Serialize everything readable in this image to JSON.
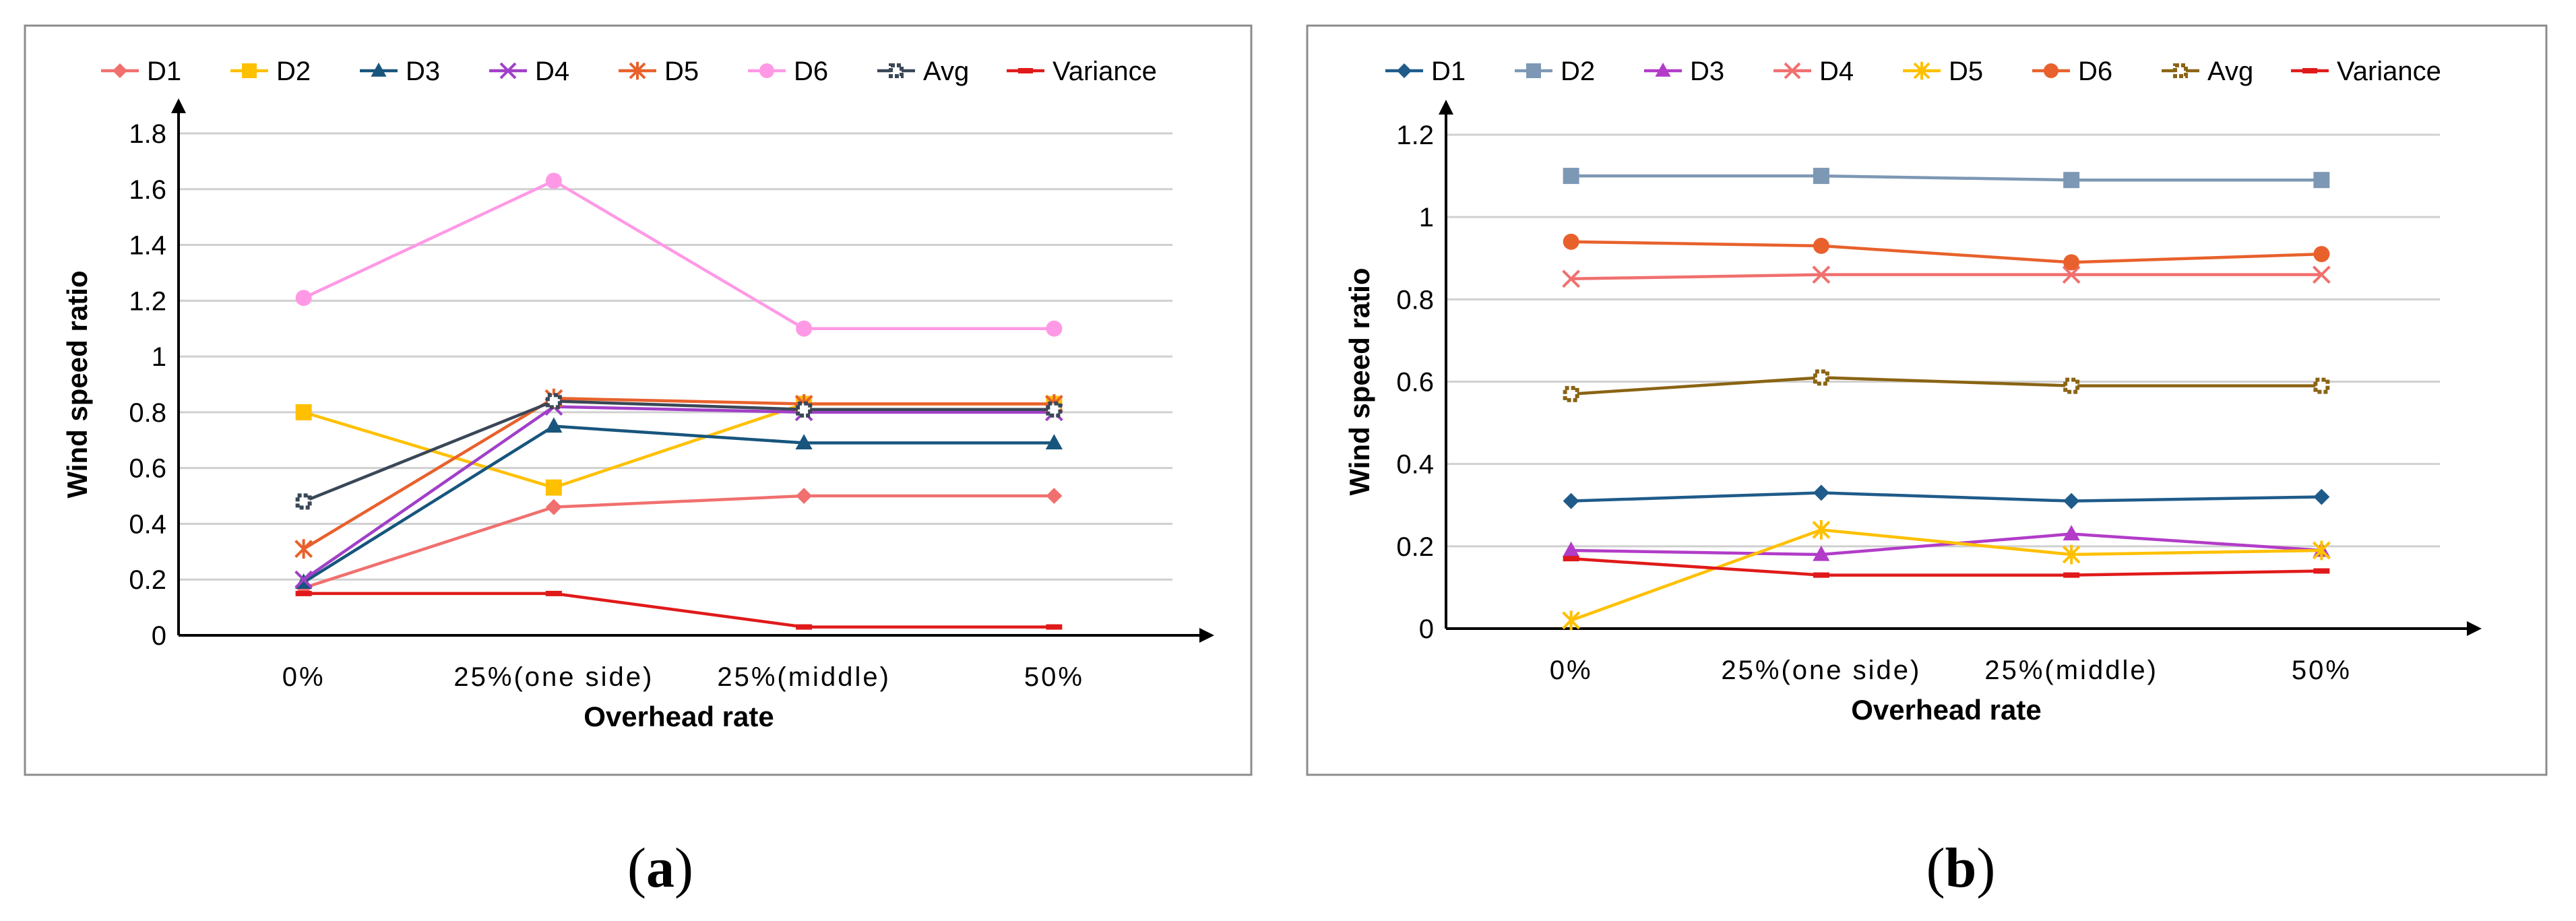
{
  "chart_data": [
    {
      "type": "line",
      "panel": "a",
      "caption": "a",
      "categories": [
        "0%",
        "25%(one side)",
        "25%(middle)",
        "50%"
      ],
      "xlabel": "Overhead rate",
      "ylabel": "Wind speed ratio",
      "ylim": [
        0,
        1.8
      ],
      "yticks": [
        0,
        0.2,
        0.4,
        0.6,
        0.8,
        1,
        1.2,
        1.4,
        1.6,
        1.8
      ],
      "ytick_labels": [
        "0",
        "0.2",
        "0.4",
        "0.6",
        "0.8",
        "1",
        "1.2",
        "1.4",
        "1.6",
        "1.8"
      ],
      "grid": true,
      "legend": "top",
      "series": [
        {
          "name": "D1",
          "color": "#f0706f",
          "marker": "diamond",
          "values": [
            0.17,
            0.46,
            0.5,
            0.5
          ]
        },
        {
          "name": "D2",
          "color": "#ffc000",
          "marker": "square",
          "values": [
            0.8,
            0.53,
            0.83,
            0.83
          ]
        },
        {
          "name": "D3",
          "color": "#17557d",
          "marker": "triangle",
          "values": [
            0.19,
            0.75,
            0.69,
            0.69
          ]
        },
        {
          "name": "D4",
          "color": "#a140c8",
          "marker": "x",
          "values": [
            0.2,
            0.82,
            0.8,
            0.8
          ]
        },
        {
          "name": "D5",
          "color": "#e8612c",
          "marker": "star",
          "values": [
            0.31,
            0.85,
            0.83,
            0.83
          ]
        },
        {
          "name": "D6",
          "color": "#ff99e6",
          "marker": "circle",
          "values": [
            1.21,
            1.63,
            1.1,
            1.1
          ]
        },
        {
          "name": "Avg",
          "color": "#3a4757",
          "marker": "hsquare",
          "values": [
            0.48,
            0.84,
            0.81,
            0.81
          ]
        },
        {
          "name": "Variance",
          "color": "#e01a1a",
          "marker": "dash",
          "values": [
            0.15,
            0.15,
            0.03,
            0.03
          ]
        }
      ]
    },
    {
      "type": "line",
      "panel": "b",
      "caption": "b",
      "categories": [
        "0%",
        "25%(one side)",
        "25%(middle)",
        "50%"
      ],
      "xlabel": "Overhead rate",
      "ylabel": "Wind speed ratio",
      "ylim": [
        0,
        1.2
      ],
      "yticks": [
        0,
        0.2,
        0.4,
        0.6,
        0.8,
        1,
        1.2
      ],
      "ytick_labels": [
        "0",
        "0.2",
        "0.4",
        "0.6",
        "0.8",
        "1",
        "1.2"
      ],
      "grid": true,
      "legend": "top",
      "series": [
        {
          "name": "D1",
          "color": "#1f5b8a",
          "marker": "diamond",
          "values": [
            0.31,
            0.33,
            0.31,
            0.32
          ]
        },
        {
          "name": "D2",
          "color": "#7d98b4",
          "marker": "square",
          "values": [
            1.1,
            1.1,
            1.09,
            1.09
          ]
        },
        {
          "name": "D3",
          "color": "#b23cc8",
          "marker": "triangle",
          "values": [
            0.19,
            0.18,
            0.23,
            0.19
          ]
        },
        {
          "name": "D4",
          "color": "#f0706f",
          "marker": "x",
          "values": [
            0.85,
            0.86,
            0.86,
            0.86
          ]
        },
        {
          "name": "D5",
          "color": "#ffc000",
          "marker": "star",
          "values": [
            0.02,
            0.24,
            0.18,
            0.19
          ]
        },
        {
          "name": "D6",
          "color": "#e8612c",
          "marker": "circle",
          "values": [
            0.94,
            0.93,
            0.89,
            0.91
          ]
        },
        {
          "name": "Avg",
          "color": "#8a6414",
          "marker": "hsquare",
          "values": [
            0.57,
            0.61,
            0.59,
            0.59
          ]
        },
        {
          "name": "Variance",
          "color": "#e01a1a",
          "marker": "dash",
          "values": [
            0.17,
            0.13,
            0.13,
            0.14
          ]
        }
      ]
    }
  ]
}
